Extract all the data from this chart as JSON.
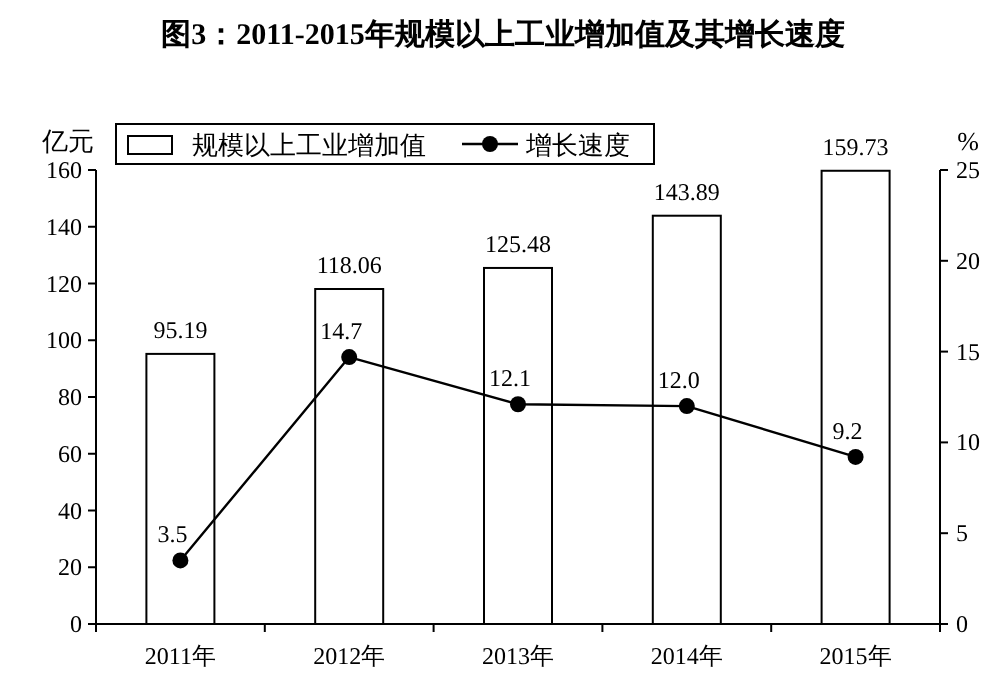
{
  "chart_data": {
    "type": "bar",
    "title": "图3：2011-2015年规模以上工业增加值及其增长速度",
    "ylabel": "亿元",
    "y2label": "%",
    "categories": [
      "2011年",
      "2012年",
      "2013年",
      "2014年",
      "2015年"
    ],
    "series": [
      {
        "name": "规模以上工业增加值",
        "color": "#ffffff",
        "values": [
          95.19,
          118.06,
          125.48,
          143.89,
          159.73
        ],
        "value_labels": [
          "95.19",
          "118.06",
          "125.48",
          "143.89",
          "159.73"
        ]
      },
      {
        "name": "增长速度",
        "type": "line",
        "axis": "y2",
        "color": "#000000",
        "marker": "circle",
        "values": [
          3.5,
          14.7,
          12.1,
          12.0,
          9.2
        ],
        "value_labels": [
          "3.5",
          "14.7",
          "12.1",
          "12.0",
          "9.2"
        ]
      }
    ],
    "ylim": [
      0,
      160
    ],
    "yticks": [
      0,
      20,
      40,
      60,
      80,
      100,
      120,
      140,
      160
    ],
    "y2lim": [
      0,
      25
    ],
    "y2ticks": [
      0,
      5,
      10,
      15,
      20,
      25
    ],
    "data_labels": true,
    "grid": false,
    "legend": "top"
  }
}
